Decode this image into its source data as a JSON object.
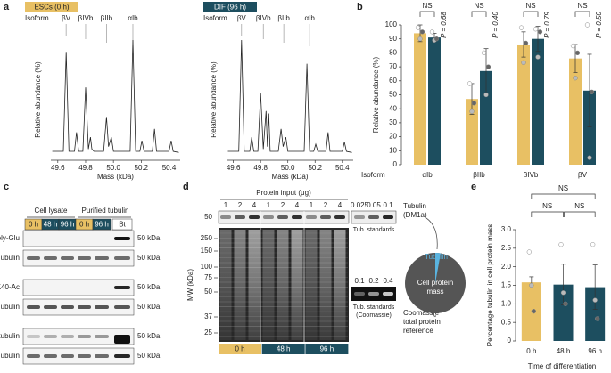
{
  "panel_labels": [
    "a",
    "b",
    "c",
    "d",
    "e"
  ],
  "chart_data": [
    {
      "type": "line",
      "title": "ESCs (0 h)",
      "isoform_label": "Isoform",
      "xlabel": "Mass (kDa)",
      "ylabel": "Relative abundance (%)",
      "color": "#222222",
      "badge_color": "#e8c064",
      "annotations": [
        {
          "label": "βV",
          "x": 49.66
        },
        {
          "label": "βIVb",
          "x": 49.8
        },
        {
          "label": "βIIb",
          "x": 49.95
        },
        {
          "label": "αIb",
          "x": 50.14
        }
      ],
      "xlim": [
        49.55,
        50.48
      ],
      "xticks": [
        49.6,
        49.8,
        {
          "value": 50,
          "label": "50.0"
        },
        50.2,
        50.4
      ],
      "ylim": [
        0,
        100
      ],
      "x": [
        49.56,
        49.64,
        49.66,
        49.68,
        49.72,
        49.735,
        49.75,
        49.78,
        49.8,
        49.82,
        49.835,
        49.845,
        49.86,
        49.93,
        49.95,
        49.965,
        49.985,
        50.0,
        50.12,
        50.14,
        50.16,
        50.19,
        50.205,
        50.22,
        50.28,
        50.295,
        50.31,
        50.4,
        50.415,
        50.43,
        50.47
      ],
      "values": [
        6,
        6,
        90,
        6,
        6,
        22,
        6,
        6,
        60,
        8,
        18,
        8,
        6,
        6,
        35,
        10,
        18,
        6,
        6,
        100,
        6,
        6,
        15,
        6,
        6,
        25,
        6,
        6,
        15,
        6,
        5
      ]
    },
    {
      "type": "line",
      "title": "DIF (96 h)",
      "isoform_label": "Isoform",
      "xlabel": "Mass (kDa)",
      "ylabel": "Relative abundance (%)",
      "color": "#222222",
      "badge_color": "#1d4e5f",
      "annotations": [
        {
          "label": "βV",
          "x": 49.66
        },
        {
          "label": "βIVb",
          "x": 49.82
        },
        {
          "label": "βIIb",
          "x": 49.97
        },
        {
          "label": "αIb",
          "x": 50.16
        }
      ],
      "xlim": [
        49.55,
        50.48
      ],
      "xticks": [
        49.6,
        49.8,
        {
          "value": 50,
          "label": "50.0"
        },
        50.2,
        50.4
      ],
      "ylim": [
        0,
        100
      ],
      "x": [
        49.56,
        49.64,
        49.66,
        49.68,
        49.72,
        49.735,
        49.75,
        49.78,
        49.8,
        49.82,
        49.84,
        49.85,
        49.86,
        49.87,
        49.93,
        49.95,
        49.965,
        49.985,
        50.0,
        50.12,
        50.14,
        50.16,
        50.19,
        50.205,
        50.22,
        50.28,
        50.295,
        50.31,
        50.4,
        50.415,
        50.43,
        50.47
      ],
      "values": [
        6,
        6,
        100,
        6,
        6,
        18,
        6,
        6,
        55,
        8,
        40,
        10,
        38,
        6,
        6,
        25,
        10,
        18,
        6,
        6,
        80,
        6,
        6,
        12,
        6,
        6,
        22,
        6,
        6,
        14,
        6,
        5
      ]
    },
    {
      "type": "bar",
      "categories": [
        "αIb",
        "βIIb",
        "βIVb",
        "βV"
      ],
      "xlabel": "Isoform",
      "ylabel": "Relative abundance (%)",
      "ylim": [
        0,
        100
      ],
      "yticks": [
        0,
        10,
        20,
        30,
        40,
        50,
        60,
        70,
        80,
        90,
        100
      ],
      "series": [
        {
          "color": "#e8c064",
          "values": [
            94,
            47,
            86,
            76
          ],
          "errors": [
            6,
            11,
            9,
            10
          ],
          "points": [
            [
              98,
              90,
              95
            ],
            [
              58,
              38,
              44
            ],
            [
              98,
              73,
              87
            ],
            [
              85,
              62,
              80
            ]
          ]
        },
        {
          "color": "#1d4e5f",
          "values": [
            91,
            67,
            90,
            53
          ],
          "errors": [
            3,
            16,
            9,
            26
          ],
          "points": [
            [
              95,
              89,
              90
            ],
            [
              80,
              50,
              70
            ],
            [
              97,
              77,
              95
            ],
            [
              100,
              5,
              52
            ]
          ]
        }
      ],
      "annotations": [
        "NS",
        "NS",
        "NS",
        "NS"
      ],
      "pvalues": [
        "P = 0.68",
        "P = 0.40",
        "P = 0.79",
        "P = 0.50"
      ]
    },
    {
      "type": "bar",
      "categories": [
        "0 h",
        "48 h",
        "96 h"
      ],
      "xlabel": "Time of differentiation",
      "ylabel": "Percentage tubulin in cell protein mass",
      "ylim": [
        0,
        3
      ],
      "yticks": [
        0,
        0.5,
        {
          "value": 1,
          "label": "1.0"
        },
        1.5,
        {
          "value": 2,
          "label": "2.0"
        },
        2.5,
        {
          "value": 3,
          "label": "3.0"
        }
      ],
      "series": [
        {
          "colors": [
            "#e8c064",
            "#1d4e5f",
            "#1d4e5f"
          ],
          "values": [
            1.58,
            1.52,
            1.45
          ],
          "errors": [
            0.15,
            0.55,
            0.6
          ],
          "points": [
            [
              2.4,
              1.5,
              0.8
            ],
            [
              2.6,
              1.3,
              1.0
            ],
            [
              2.6,
              1.1,
              0.6
            ]
          ]
        }
      ],
      "annotations": [
        "NS",
        "NS",
        "NS"
      ]
    }
  ],
  "panel_c": {
    "groups": [
      "Cell lysate",
      "Purified tubulin"
    ],
    "lanes": [
      "0 h",
      "48 h",
      "96 h",
      "0 h",
      "96 h",
      "Bt"
    ],
    "rows": [
      "Poly-Glu",
      "α/β-Tubulin",
      "K40-Ac",
      "α/β-Tubulin",
      "Detyr tubulin",
      "α-Tubulin"
    ],
    "kda": "50 kDa"
  },
  "panel_d": {
    "input_label": "Protein input (μg)",
    "lanes": [
      "1",
      "2",
      "4",
      "1",
      "2",
      "4",
      "1",
      "2",
      "4"
    ],
    "standards": [
      "0.025",
      "0.05",
      "0.1"
    ],
    "standards_label": "Tub. standards",
    "top_mw": "50",
    "blot_label": [
      "Tubulin",
      "(DM1a)"
    ],
    "mw_label": "MW (kDa)",
    "ladder": [
      "250",
      "150",
      "100",
      "75",
      "50",
      "37",
      "25"
    ],
    "coomassie_standards": [
      "0.1",
      "0.2",
      "0.4"
    ],
    "coomassie_label": [
      "Tub. standards",
      "(Coomassie)"
    ],
    "times": [
      "0 h",
      "48 h",
      "96 h"
    ],
    "reference_label": [
      "Coomassie",
      "total protein",
      "reference"
    ],
    "pie_tubulin": "Tubulin",
    "pie_mass": [
      "Cell protein",
      "mass"
    ]
  }
}
